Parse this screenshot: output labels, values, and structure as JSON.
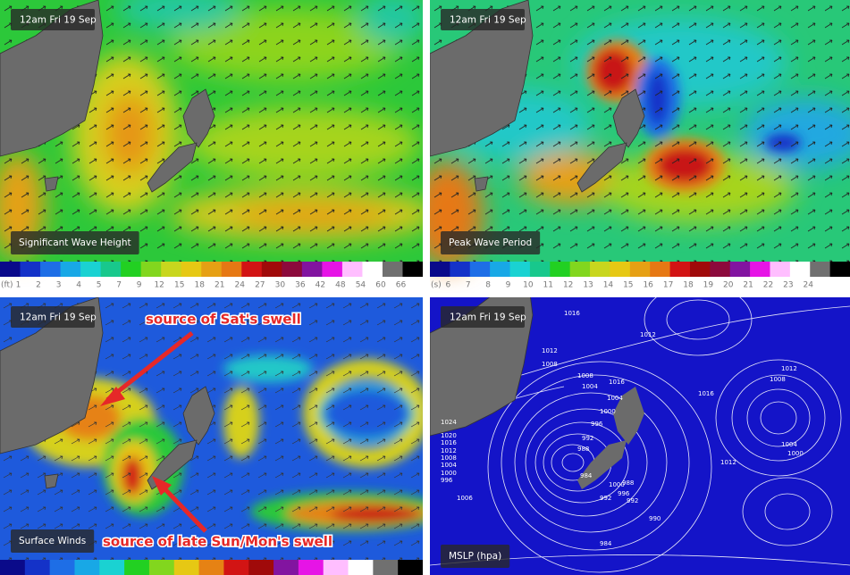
{
  "panels": [
    {
      "timestamp": "12am Fri 19 Sep",
      "label": "Significant Wave Height",
      "legend": {
        "unit": "(ft)",
        "ticks": [
          1,
          2,
          3,
          4,
          5,
          7,
          9,
          12,
          15,
          18,
          21,
          24,
          27,
          30,
          36,
          42,
          48,
          54,
          60,
          66
        ],
        "colors": [
          "#0a0a8a",
          "#1432c8",
          "#1e6ee6",
          "#18a8e6",
          "#1ad2d2",
          "#18c88c",
          "#22d022",
          "#82d61e",
          "#c8d61e",
          "#e6c814",
          "#e6a014",
          "#e67814",
          "#d21414",
          "#a00a0a",
          "#8c0a3c",
          "#8214a0",
          "#e614e6",
          "#ffbeff",
          "#ffffff",
          "#707070",
          "#000000"
        ]
      }
    },
    {
      "timestamp": "12am Fri 19 Sep",
      "label": "Peak Wave Period",
      "legend": {
        "unit": "(s)",
        "ticks": [
          6,
          7,
          8,
          9,
          10,
          11,
          12,
          13,
          14,
          15,
          16,
          17,
          18,
          19,
          20,
          21,
          22,
          23,
          24
        ],
        "colors": [
          "#0a0a8a",
          "#1432c8",
          "#1e6ee6",
          "#18a8e6",
          "#1ad2d2",
          "#18c88c",
          "#22d022",
          "#82d61e",
          "#c8d61e",
          "#e6c814",
          "#e6a014",
          "#e67814",
          "#d21414",
          "#a00a0a",
          "#8c0a3c",
          "#8214a0",
          "#e614e6",
          "#ffbeff",
          "#ffffff",
          "#707070",
          "#000000"
        ]
      }
    },
    {
      "timestamp": "12am Fri 19 Sep",
      "label": "Surface Winds",
      "legend": {
        "colors": [
          "#0a0a8a",
          "#1432c8",
          "#1e6ee6",
          "#18a8e6",
          "#1ad2d2",
          "#22d022",
          "#82d61e",
          "#e6c814",
          "#e68214",
          "#d21414",
          "#a00a0a",
          "#8214a0",
          "#e614e6",
          "#ffbeff",
          "#ffffff",
          "#707070",
          "#000000"
        ]
      },
      "annotations": [
        "source of Sat's swell",
        "source of late Sun/Mon's swell"
      ]
    },
    {
      "timestamp": "12am Fri 19 Sep",
      "label": "MSLP (hpa)",
      "isobar_labels": [
        "1016",
        "1012",
        "1008",
        "1016",
        "1012",
        "1016",
        "1004",
        "1000",
        "996",
        "992",
        "988",
        "984",
        "1024",
        "1020",
        "1016",
        "1012",
        "1008",
        "1004",
        "1000",
        "996",
        "992",
        "990",
        "996",
        "1000",
        "1004",
        "1008",
        "1012",
        "984",
        "1012",
        "1008",
        "1000",
        "1004",
        "1006",
        "988",
        "992"
      ]
    }
  ]
}
